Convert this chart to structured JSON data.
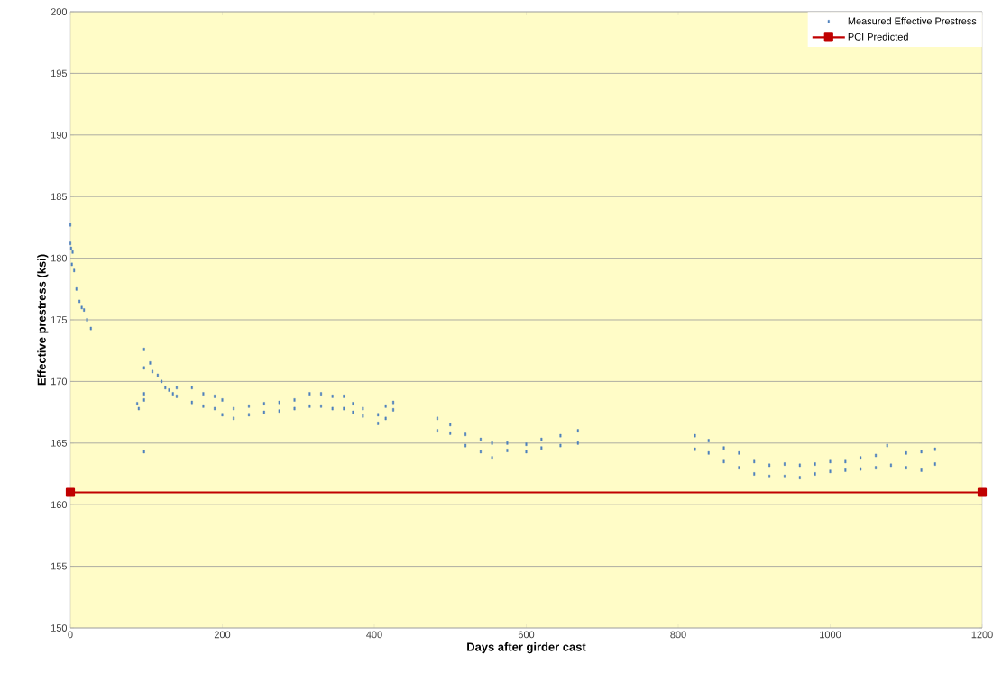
{
  "chart_data": {
    "type": "scatter",
    "xlabel": "Days after girder cast",
    "ylabel": "Effective prestress (ksi)",
    "xlim": [
      0,
      1200
    ],
    "xticks": [
      0,
      200,
      400,
      600,
      800,
      1000,
      1200
    ],
    "ylim": [
      150,
      200
    ],
    "yticks": [
      150,
      155,
      160,
      165,
      170,
      175,
      180,
      185,
      190,
      195,
      200
    ],
    "grid": "y",
    "legend": "top right",
    "series": [
      {
        "name": "Measured Effective Prestress",
        "color": "#4f81bd",
        "marker": "square",
        "x": [
          0,
          0,
          1,
          2,
          3,
          5,
          8,
          12,
          15,
          18,
          22,
          27,
          88,
          90,
          97,
          97,
          97,
          97,
          97,
          105,
          108,
          115,
          120,
          125,
          130,
          135,
          140,
          140,
          160,
          160,
          175,
          175,
          190,
          190,
          200,
          200,
          215,
          215,
          235,
          235,
          255,
          255,
          275,
          275,
          295,
          295,
          315,
          315,
          330,
          330,
          345,
          345,
          360,
          360,
          372,
          372,
          385,
          385,
          405,
          405,
          415,
          415,
          425,
          425,
          483,
          483,
          500,
          500,
          520,
          520,
          540,
          540,
          555,
          555,
          575,
          575,
          600,
          600,
          620,
          620,
          645,
          645,
          668,
          668,
          822,
          822,
          840,
          840,
          860,
          860,
          880,
          880,
          900,
          900,
          920,
          920,
          940,
          940,
          960,
          960,
          980,
          980,
          1000,
          1000,
          1020,
          1020,
          1040,
          1040,
          1060,
          1060,
          1075,
          1080,
          1100,
          1100,
          1120,
          1120,
          1138,
          1138
        ],
        "values": [
          182.7,
          181.2,
          180.8,
          179.5,
          180.5,
          179,
          177.5,
          176.5,
          176,
          175.8,
          175,
          174.3,
          168.2,
          167.8,
          172.6,
          171.1,
          169,
          168.5,
          164.3,
          171.5,
          170.8,
          170.5,
          170,
          169.5,
          169.3,
          169,
          169.5,
          168.8,
          169.5,
          168.3,
          169,
          168,
          168.8,
          167.8,
          168.5,
          167.3,
          167.8,
          167,
          168,
          167.3,
          168.2,
          167.5,
          168.3,
          167.6,
          168.5,
          167.8,
          169,
          168,
          169,
          168,
          168.8,
          167.8,
          168.8,
          167.8,
          168.2,
          167.5,
          167.8,
          167.2,
          167.3,
          166.6,
          168,
          167,
          168.3,
          167.7,
          167,
          166,
          166.5,
          165.8,
          165.7,
          164.8,
          165.3,
          164.3,
          165,
          163.8,
          165,
          164.4,
          164.9,
          164.3,
          165.3,
          164.6,
          165.6,
          164.8,
          166,
          165,
          165.6,
          164.5,
          165.2,
          164.2,
          164.6,
          163.5,
          164.2,
          163,
          163.5,
          162.5,
          163.2,
          162.3,
          163.3,
          162.3,
          163.2,
          162.2,
          163.3,
          162.5,
          163.5,
          162.7,
          163.5,
          162.8,
          163.8,
          162.9,
          164,
          163,
          164.8,
          163.2,
          164.2,
          163,
          164.3,
          162.8,
          164.5,
          163.3
        ]
      },
      {
        "name": "PCI Predicted",
        "type": "line",
        "color": "#c00000",
        "marker": "square",
        "line_style": "solid",
        "x": [
          0,
          1200
        ],
        "values": [
          161,
          161
        ]
      }
    ]
  }
}
